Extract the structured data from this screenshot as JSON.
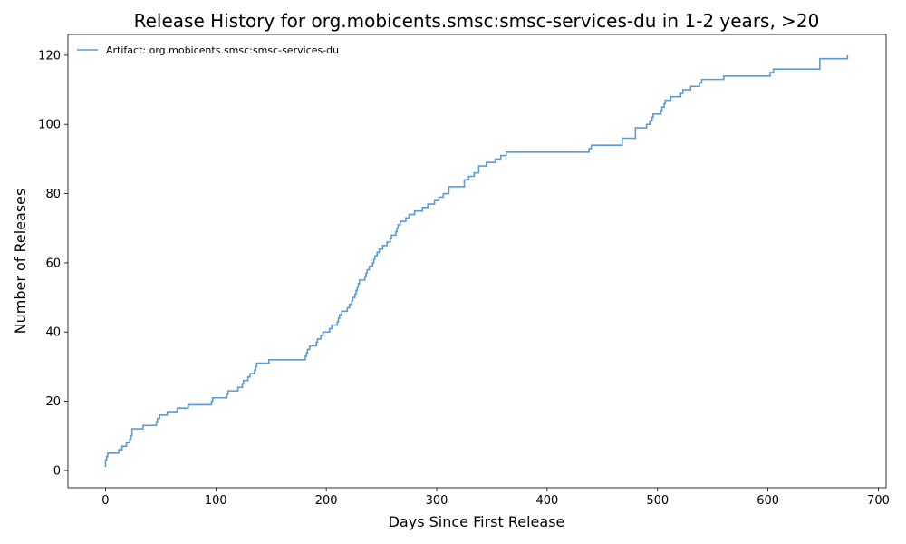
{
  "chart_data": {
    "type": "line",
    "title": "Release History for org.mobicents.smsc:smsc-services-du in 1-2 years, >20",
    "xlabel": "Days Since First Release",
    "ylabel": "Number of Releases",
    "xlim": [
      -34,
      707
    ],
    "ylim": [
      -5,
      126
    ],
    "xticks": [
      0,
      100,
      200,
      300,
      400,
      500,
      600,
      700
    ],
    "yticks": [
      0,
      20,
      40,
      60,
      80,
      100,
      120
    ],
    "grid": false,
    "legend_position": "top-left",
    "line_color": "#5b9bd5",
    "series": [
      {
        "name": "Artifact: org.mobicents.smsc:smsc-services-du",
        "step": true,
        "points": [
          [
            0,
            1
          ],
          [
            0,
            3
          ],
          [
            1,
            4
          ],
          [
            2,
            5
          ],
          [
            12,
            6
          ],
          [
            15,
            7
          ],
          [
            19,
            8
          ],
          [
            22,
            9
          ],
          [
            23,
            10
          ],
          [
            24,
            12
          ],
          [
            34,
            13
          ],
          [
            46,
            14
          ],
          [
            47,
            15
          ],
          [
            49,
            16
          ],
          [
            56,
            17
          ],
          [
            65,
            18
          ],
          [
            75,
            19
          ],
          [
            96,
            20
          ],
          [
            97,
            21
          ],
          [
            110,
            22
          ],
          [
            111,
            23
          ],
          [
            120,
            24
          ],
          [
            124,
            25
          ],
          [
            125,
            26
          ],
          [
            129,
            27
          ],
          [
            131,
            28
          ],
          [
            135,
            29
          ],
          [
            136,
            30
          ],
          [
            137,
            31
          ],
          [
            148,
            32
          ],
          [
            181,
            33
          ],
          [
            182,
            34
          ],
          [
            183,
            35
          ],
          [
            185,
            36
          ],
          [
            191,
            37
          ],
          [
            192,
            38
          ],
          [
            195,
            39
          ],
          [
            197,
            40
          ],
          [
            203,
            41
          ],
          [
            205,
            42
          ],
          [
            210,
            43
          ],
          [
            211,
            44
          ],
          [
            212,
            45
          ],
          [
            214,
            46
          ],
          [
            219,
            47
          ],
          [
            221,
            48
          ],
          [
            223,
            49
          ],
          [
            224,
            50
          ],
          [
            226,
            51
          ],
          [
            227,
            52
          ],
          [
            228,
            53
          ],
          [
            229,
            54
          ],
          [
            230,
            55
          ],
          [
            235,
            56
          ],
          [
            236,
            57
          ],
          [
            237,
            58
          ],
          [
            239,
            59
          ],
          [
            242,
            60
          ],
          [
            243,
            61
          ],
          [
            244,
            62
          ],
          [
            246,
            63
          ],
          [
            248,
            64
          ],
          [
            251,
            65
          ],
          [
            255,
            66
          ],
          [
            258,
            67
          ],
          [
            259,
            68
          ],
          [
            263,
            69
          ],
          [
            264,
            70
          ],
          [
            265,
            71
          ],
          [
            267,
            72
          ],
          [
            272,
            73
          ],
          [
            275,
            74
          ],
          [
            280,
            75
          ],
          [
            287,
            76
          ],
          [
            292,
            77
          ],
          [
            298,
            78
          ],
          [
            302,
            79
          ],
          [
            306,
            80
          ],
          [
            311,
            82
          ],
          [
            325,
            84
          ],
          [
            329,
            85
          ],
          [
            334,
            86
          ],
          [
            338,
            88
          ],
          [
            345,
            89
          ],
          [
            353,
            90
          ],
          [
            358,
            91
          ],
          [
            363,
            92
          ],
          [
            438,
            93
          ],
          [
            440,
            94
          ],
          [
            468,
            96
          ],
          [
            480,
            99
          ],
          [
            490,
            100
          ],
          [
            493,
            101
          ],
          [
            495,
            102
          ],
          [
            496,
            103
          ],
          [
            503,
            104
          ],
          [
            504,
            105
          ],
          [
            506,
            106
          ],
          [
            507,
            107
          ],
          [
            512,
            108
          ],
          [
            521,
            109
          ],
          [
            523,
            110
          ],
          [
            530,
            111
          ],
          [
            538,
            112
          ],
          [
            540,
            113
          ],
          [
            560,
            114
          ],
          [
            602,
            115
          ],
          [
            605,
            116
          ],
          [
            647,
            119
          ],
          [
            672,
            120
          ]
        ]
      }
    ]
  }
}
